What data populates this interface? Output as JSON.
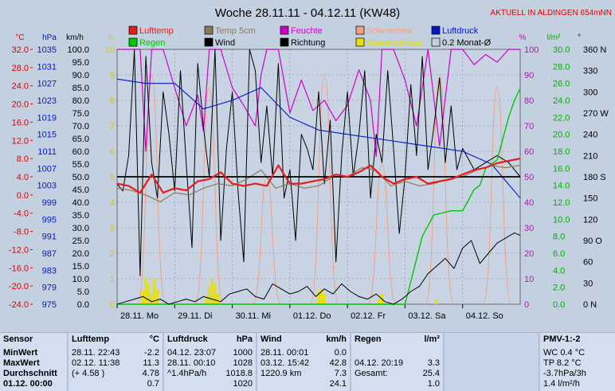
{
  "chart_data": {
    "type": "line",
    "title": "Woche 28.11.11 - 04.12.11 (KW48)",
    "subtitle": "AKTUELL IN ALDINGEN 654mNN",
    "legend": [
      {
        "name": "Lufttemp",
        "color": "#e22020"
      },
      {
        "name": "Temp 5cm",
        "color": "#8a7a5a"
      },
      {
        "name": "Feuchte",
        "color": "#d000c8"
      },
      {
        "name": "Solarsensor",
        "color": "#f4a080"
      },
      {
        "name": "Luftdruck",
        "color": "#0018c8"
      },
      {
        "name": "Regen",
        "color": "#00c800"
      },
      {
        "name": "Wind",
        "color": "#000000"
      },
      {
        "name": "Richtung",
        "color": "#000000"
      },
      {
        "name": "Sonnenschein",
        "color": "#e8e000"
      },
      {
        "name": "0.2 Monat-Ø",
        "color": "#000000"
      }
    ],
    "x_ticks": [
      "28.11. Mo",
      "29.11. Di",
      "30.11. Mi",
      "01.12. Do",
      "02.12. Fr",
      "03.12. Sa",
      "04.12. So"
    ],
    "axes": {
      "temp": {
        "unit": "°C",
        "color": "#e00000",
        "ticks": [
          "32.0",
          "28.0",
          "24.0",
          "20.0",
          "16.0",
          "12.0",
          "8.0",
          "4.0",
          "0.0",
          "-4.0",
          "-8.0",
          "-12.0",
          "-16.0",
          "-20.0",
          "-24.0"
        ],
        "ylim": [
          -24,
          32
        ]
      },
      "pressure": {
        "unit": "hPa",
        "color": "#0018c8",
        "ticks": [
          "1035",
          "1031",
          "1027",
          "1023",
          "1019",
          "1015",
          "1011",
          "1007",
          "1003",
          "999",
          "995",
          "991",
          "987",
          "983",
          "979",
          "975"
        ],
        "ylim": [
          975,
          1035
        ]
      },
      "wind": {
        "unit": "km/h",
        "color": "#000000",
        "ticks": [
          "100.0",
          "95.0",
          "90.0",
          "85.0",
          "80.0",
          "75.0",
          "70.0",
          "65.0",
          "60.0",
          "55.0",
          "50.0",
          "45.0",
          "40.0",
          "35.0",
          "30.0",
          "25.0",
          "20.0",
          "15.0",
          "10.0",
          "5.0",
          "0.0"
        ],
        "ylim": [
          0,
          100
        ]
      },
      "sun": {
        "unit": "h",
        "color": "#d8c800",
        "ticks": [
          "10",
          "9",
          "8",
          "7",
          "6",
          "5",
          "4",
          "3",
          "2",
          "1",
          "0"
        ],
        "ylim": [
          0,
          10
        ]
      },
      "humidity": {
        "unit": "%",
        "color": "#d000c8",
        "ticks": [
          "100",
          "90",
          "80",
          "70",
          "60",
          "50",
          "40",
          "30",
          "20",
          "10",
          "0"
        ],
        "ylim": [
          0,
          100
        ]
      },
      "rain": {
        "unit": "l/m²",
        "color": "#00b000",
        "ticks": [
          "30.0",
          "28.0",
          "26.0",
          "24.0",
          "22.0",
          "20.0",
          "18.0",
          "16.0",
          "14.0",
          "12.0",
          "10.0",
          "8.0",
          "6.0",
          "4.0",
          "2.0",
          "0.0"
        ],
        "ylim": [
          0,
          30
        ]
      },
      "direction": {
        "unit": "°",
        "color": "#000000",
        "ticks": [
          "360 N",
          "330",
          "300",
          "270 W",
          "240",
          "210",
          "180 S",
          "150",
          "120",
          "90 O",
          "60",
          "30",
          "0 N"
        ],
        "ylim": [
          0,
          360
        ]
      }
    },
    "series": [
      {
        "name": "Lufttemp",
        "axis": "temp",
        "x": [
          0,
          0.2,
          0.4,
          0.6,
          0.8,
          1.0,
          1.2,
          1.4,
          1.6,
          1.8,
          2.0,
          2.2,
          2.4,
          2.6,
          2.8,
          3.0,
          3.2,
          3.4,
          3.6,
          3.8,
          4.0,
          4.2,
          4.4,
          4.6,
          4.8,
          5.0,
          5.2,
          5.4,
          5.6,
          5.8,
          6.0,
          6.2,
          6.4,
          6.6,
          6.8,
          7.0
        ],
        "values": [
          2.5,
          2.0,
          0.5,
          4.5,
          0.5,
          1.5,
          1.0,
          3.0,
          3.5,
          5.0,
          2.5,
          2.0,
          2.5,
          2.0,
          6.5,
          2.5,
          2.5,
          3.0,
          3.5,
          4.5,
          4.0,
          5.0,
          6.5,
          4.0,
          2.5,
          3.5,
          4.0,
          2.5,
          3.0,
          3.5,
          4.5,
          5.5,
          6.0,
          7.0,
          7.5,
          8.0
        ]
      },
      {
        "name": "Temp 5cm",
        "axis": "temp",
        "x": [
          0,
          0.25,
          0.5,
          0.75,
          1.0,
          1.25,
          1.5,
          1.75,
          2.0,
          2.25,
          2.5,
          2.75,
          3.0,
          3.25,
          3.5,
          3.75,
          4.0,
          4.25,
          4.5,
          4.75,
          5.0,
          5.25,
          5.5,
          5.75,
          6.0,
          6.25,
          6.5,
          6.75,
          7.0
        ],
        "values": [
          1.5,
          1.0,
          0.0,
          -1.5,
          0.5,
          0.0,
          1.5,
          2.5,
          2.0,
          3.5,
          5.5,
          1.5,
          2.5,
          1.5,
          2.0,
          4.0,
          4.0,
          6.0,
          5.5,
          2.0,
          3.0,
          2.0,
          2.5,
          3.5,
          4.0,
          5.5,
          6.5,
          6.0,
          6.5
        ]
      },
      {
        "name": "Feuchte",
        "axis": "humidity",
        "x": [
          0,
          0.2,
          0.4,
          0.5,
          0.6,
          0.8,
          1.0,
          1.2,
          1.4,
          1.5,
          1.6,
          1.8,
          2.0,
          2.2,
          2.4,
          2.5,
          2.6,
          2.8,
          3.0,
          3.2,
          3.4,
          3.6,
          3.8,
          4.0,
          4.2,
          4.4,
          4.5,
          4.6,
          4.8,
          5.0,
          5.2,
          5.4,
          5.6,
          5.8,
          6.0,
          6.2,
          6.4,
          6.6,
          6.8,
          7.0
        ],
        "values": [
          100,
          100,
          100,
          60,
          100,
          100,
          85,
          70,
          82,
          68,
          100,
          100,
          85,
          78,
          70,
          90,
          100,
          100,
          75,
          88,
          76,
          80,
          72,
          78,
          92,
          80,
          58,
          100,
          100,
          88,
          70,
          100,
          62,
          100,
          100,
          94,
          98,
          95,
          100,
          100
        ]
      },
      {
        "name": "Luftdruck",
        "axis": "pressure",
        "x": [
          0,
          0.5,
          1.0,
          1.5,
          2.0,
          2.5,
          3.0,
          3.5,
          4.0,
          4.5,
          5.0,
          5.5,
          6.0,
          6.5,
          7.0
        ],
        "values": [
          1028,
          1027,
          1027,
          1021,
          1023,
          1026,
          1019,
          1016,
          1015,
          1014,
          1013,
          1012,
          1011,
          1008,
          1000
        ]
      },
      {
        "name": "Regen",
        "axis": "rain",
        "x": [
          0,
          4.5,
          5.0,
          5.15,
          5.3,
          5.5,
          5.8,
          6.0,
          6.2,
          6.3,
          6.4,
          6.6,
          6.8,
          6.9,
          7.0
        ],
        "values": [
          0,
          0,
          0,
          4,
          8,
          10.5,
          11,
          11,
          13.5,
          14,
          16,
          17,
          22,
          24,
          25.4
        ]
      },
      {
        "name": "Wind",
        "axis": "wind",
        "x": [
          0,
          0.15,
          0.3,
          0.45,
          0.6,
          0.75,
          0.9,
          1.05,
          1.2,
          1.35,
          1.5,
          1.65,
          1.8,
          1.95,
          2.1,
          2.25,
          2.4,
          2.55,
          2.7,
          2.85,
          3.0,
          3.15,
          3.3,
          3.45,
          3.6,
          3.75,
          3.9,
          4.05,
          4.2,
          4.35,
          4.5,
          4.65,
          4.8,
          4.95,
          5.1,
          5.25,
          5.4,
          5.55,
          5.7,
          5.85,
          6.0,
          6.15,
          6.3,
          6.45,
          6.6,
          6.75,
          6.9,
          7.0
        ],
        "values": [
          0,
          1,
          2,
          3,
          1,
          2,
          0,
          1,
          2,
          1,
          3,
          2,
          1,
          4,
          5,
          6,
          3,
          2,
          8,
          6,
          4,
          5,
          7,
          3,
          6,
          4,
          8,
          5,
          3,
          2,
          4,
          1,
          0,
          2,
          5,
          7,
          12,
          15,
          18,
          14,
          22,
          25,
          16,
          20,
          24,
          26,
          28,
          27
        ]
      },
      {
        "name": "Richtung",
        "axis": "direction",
        "x": [
          0,
          0.1,
          0.2,
          0.3,
          0.4,
          0.5,
          0.6,
          0.7,
          0.8,
          0.9,
          1.0,
          1.1,
          1.2,
          1.3,
          1.4,
          1.5,
          1.6,
          1.7,
          1.8,
          1.9,
          2.0,
          2.1,
          2.2,
          2.3,
          2.4,
          2.5,
          2.6,
          2.7,
          2.8,
          2.9,
          3.0,
          3.1,
          3.2,
          3.3,
          3.4,
          3.5,
          3.6,
          3.7,
          3.8,
          3.9,
          4.0,
          4.1,
          4.2,
          4.3,
          4.4,
          4.5,
          4.6,
          4.7,
          4.8,
          4.9,
          5.0,
          5.1,
          5.2,
          5.3,
          5.4,
          5.5,
          5.6,
          5.7,
          5.8,
          5.9,
          6.0,
          6.2,
          6.4,
          6.6,
          6.8,
          7.0
        ],
        "values": [
          170,
          160,
          210,
          360,
          40,
          350,
          200,
          150,
          300,
          240,
          160,
          330,
          200,
          80,
          340,
          250,
          180,
          360,
          90,
          220,
          300,
          160,
          60,
          360,
          330,
          200,
          280,
          180,
          340,
          150,
          190,
          90,
          240,
          220,
          190,
          300,
          170,
          260,
          60,
          210,
          300,
          180,
          240,
          330,
          150,
          240,
          200,
          330,
          220,
          100,
          180,
          310,
          210,
          350,
          190,
          250,
          320,
          200,
          280,
          190,
          220,
          190,
          200,
          210,
          200,
          180
        ]
      },
      {
        "name": "0.2 Monat-Ø",
        "axis": "temp",
        "x": [
          0,
          7.0
        ],
        "values": [
          4,
          4
        ]
      }
    ],
    "sunshine_bars": {
      "x": [
        0.45,
        0.5,
        0.55,
        0.6,
        0.65,
        0.7,
        1.55,
        1.6,
        1.65,
        1.7,
        1.75,
        3.5,
        3.55,
        3.6,
        4.55,
        4.6,
        5.55
      ],
      "values": [
        0.5,
        1.0,
        0.8,
        0.4,
        1.0,
        0.6,
        0.3,
        0.7,
        1.0,
        0.8,
        0.4,
        0.5,
        0.6,
        0.4,
        0.2,
        0.4,
        0.2
      ]
    },
    "solar_peaks": {
      "x": [
        0.6,
        1.6,
        2.6,
        3.6,
        4.6,
        5.6,
        6.6
      ],
      "values": [
        9,
        8.5,
        5,
        9,
        5.5,
        9,
        8.5
      ]
    }
  },
  "stats": {
    "sensor": {
      "header": "Sensor",
      "rows": [
        "MinWert",
        "MaxWert",
        "Durchschnitt",
        "01.12. 00:00"
      ]
    },
    "lufttemp": {
      "header": "Lufttemp",
      "unit": "°C",
      "rows": [
        {
          "a": "28.11.  22:43",
          "b": "-2.2"
        },
        {
          "a": "02.12.  11:38",
          "b": "11.3"
        },
        {
          "a": "(+ 4.58 )",
          "b": "4.78"
        },
        {
          "a": "",
          "b": "0.7"
        }
      ]
    },
    "luftdruck": {
      "header": "Luftdruck",
      "unit": "hPa",
      "rows": [
        {
          "a": "04.12.  23:07",
          "b": "1000"
        },
        {
          "a": "28.11.  00:10",
          "b": "1028"
        },
        {
          "a": "^1.4hPa/h",
          "b": "1018.8"
        },
        {
          "a": "",
          "b": "1020"
        }
      ]
    },
    "wind": {
      "header": "Wind",
      "unit": "km/h",
      "rows": [
        {
          "a": "28.11.  00:01",
          "b": "0.0"
        },
        {
          "a": "03.12.  15:42",
          "b": "42.8"
        },
        {
          "a": "1220.9 km",
          "b": "7.3"
        },
        {
          "a": "",
          "b": "24.1"
        }
      ]
    },
    "regen": {
      "header": "Regen",
      "unit": "l/m²",
      "rows": [
        {
          "a": "",
          "b": ""
        },
        {
          "a": "04.12.  20:19",
          "b": "3.3"
        },
        {
          "a": "Gesamt:",
          "b": "25.4"
        },
        {
          "a": "",
          "b": "1.0"
        }
      ]
    },
    "pmv": {
      "header": "PMV-1:-2",
      "rows": [
        "WC 0.4 °C",
        "TP 8.2 °C",
        "-3.7hPa/3h",
        "1.4 l/m²/h"
      ]
    }
  }
}
